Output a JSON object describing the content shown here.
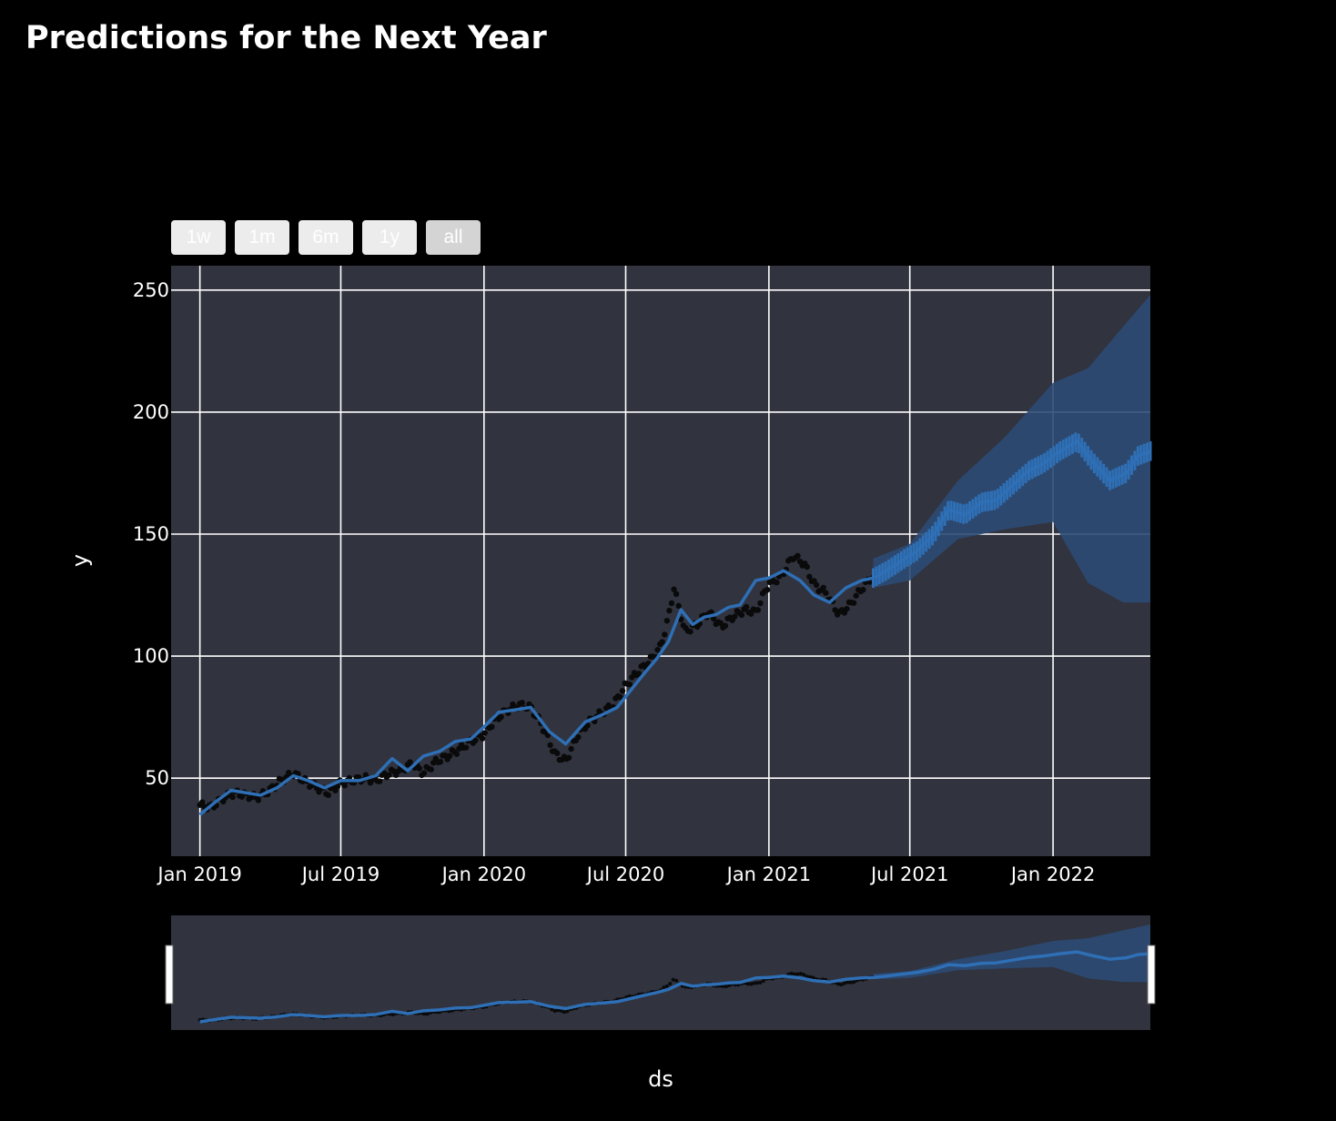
{
  "title": "Predictions for the Next Year",
  "range_selector": {
    "buttons": [
      {
        "label": "1w",
        "active": false
      },
      {
        "label": "1m",
        "active": false
      },
      {
        "label": "6m",
        "active": false
      },
      {
        "label": "1y",
        "active": false
      },
      {
        "label": "all",
        "active": true
      }
    ]
  },
  "colors": {
    "page_background": "#000000",
    "plot_background": "#31333f",
    "grid": "#ffffff",
    "forecast_line": "#2e6fb5",
    "forecast_band": "#2e4a73",
    "actual_points": "#0a0a0a",
    "text": "#ffffff"
  },
  "chart_data": {
    "type": "line",
    "title": "Predictions for the Next Year",
    "xlabel": "ds",
    "ylabel": "y",
    "x_type": "date",
    "xlim": [
      "2018-11-25",
      "2022-05-06"
    ],
    "ylim": [
      18,
      260
    ],
    "x_ticks": [
      "2019-01-01",
      "2019-07-01",
      "2020-01-01",
      "2020-07-01",
      "2021-01-01",
      "2021-07-01",
      "2022-01-01"
    ],
    "x_tick_labels": [
      "Jan 2019",
      "Jul 2019",
      "Jan 2020",
      "Jul 2020",
      "Jan 2021",
      "Jul 2021",
      "Jan 2022"
    ],
    "y_ticks": [
      50,
      100,
      150,
      200,
      250
    ],
    "grid": true,
    "legend": false,
    "range_slider": true,
    "series": [
      {
        "kind": "actual (markers)",
        "x": [
          "2019-01-01",
          "2019-01-15",
          "2019-02-01",
          "2019-02-15",
          "2019-03-01",
          "2019-03-15",
          "2019-04-01",
          "2019-04-15",
          "2019-05-01",
          "2019-05-15",
          "2019-06-01",
          "2019-06-15",
          "2019-07-01",
          "2019-07-15",
          "2019-08-01",
          "2019-08-15",
          "2019-09-01",
          "2019-09-15",
          "2019-10-01",
          "2019-10-15",
          "2019-11-01",
          "2019-11-15",
          "2019-12-01",
          "2019-12-15",
          "2020-01-01",
          "2020-01-15",
          "2020-02-01",
          "2020-02-15",
          "2020-03-01",
          "2020-03-15",
          "2020-04-01",
          "2020-04-15",
          "2020-05-01",
          "2020-05-15",
          "2020-06-01",
          "2020-06-15",
          "2020-07-01",
          "2020-07-15",
          "2020-08-01",
          "2020-08-15",
          "2020-08-25",
          "2020-09-01",
          "2020-09-15",
          "2020-10-01",
          "2020-10-15",
          "2020-11-01",
          "2020-11-15",
          "2020-12-01",
          "2020-12-15",
          "2021-01-01",
          "2021-01-15",
          "2021-02-01",
          "2021-02-15",
          "2021-03-01",
          "2021-03-15",
          "2021-04-01",
          "2021-04-15",
          "2021-05-01",
          "2021-05-15"
        ],
        "y": [
          39,
          38,
          42,
          44,
          43,
          42,
          45,
          49,
          52,
          49,
          46,
          44,
          48,
          49,
          50,
          49,
          52,
          53,
          56,
          52,
          57,
          59,
          62,
          65,
          68,
          74,
          78,
          80,
          79,
          72,
          60,
          57,
          68,
          73,
          77,
          80,
          88,
          93,
          98,
          104,
          116,
          128,
          110,
          113,
          118,
          112,
          116,
          119,
          118,
          130,
          132,
          141,
          138,
          129,
          126,
          117,
          121,
          128,
          133
        ]
      },
      {
        "kind": "forecast (yhat)",
        "x": [
          "2019-01-01",
          "2019-01-20",
          "2019-02-10",
          "2019-03-01",
          "2019-03-20",
          "2019-04-10",
          "2019-05-01",
          "2019-05-20",
          "2019-06-10",
          "2019-07-01",
          "2019-07-25",
          "2019-08-15",
          "2019-09-05",
          "2019-09-25",
          "2019-10-15",
          "2019-11-05",
          "2019-11-25",
          "2019-12-15",
          "2020-01-01",
          "2020-01-20",
          "2020-02-10",
          "2020-03-01",
          "2020-03-25",
          "2020-04-15",
          "2020-05-10",
          "2020-06-01",
          "2020-06-20",
          "2020-07-10",
          "2020-07-25",
          "2020-08-10",
          "2020-08-25",
          "2020-09-10",
          "2020-09-25",
          "2020-10-10",
          "2020-10-25",
          "2020-11-10",
          "2020-11-25",
          "2020-12-15",
          "2021-01-01",
          "2021-01-20",
          "2021-02-10",
          "2021-02-28",
          "2021-03-20",
          "2021-04-10",
          "2021-04-30",
          "2021-05-15",
          "2021-06-01",
          "2021-06-20",
          "2021-07-10",
          "2021-08-01",
          "2021-08-20",
          "2021-09-10",
          "2021-10-01",
          "2021-10-20",
          "2021-11-10",
          "2021-12-01",
          "2021-12-20",
          "2022-01-10",
          "2022-02-01",
          "2022-02-20",
          "2022-03-15",
          "2022-04-05",
          "2022-04-20",
          "2022-05-06"
        ],
        "y": [
          35,
          40,
          45,
          44,
          43,
          46,
          51,
          49,
          46,
          49,
          49,
          51,
          58,
          53,
          59,
          61,
          65,
          66,
          71,
          77,
          78,
          79,
          69,
          64,
          73,
          76,
          79,
          87,
          93,
          99,
          106,
          119,
          113,
          116,
          117,
          120,
          121,
          131,
          132,
          135,
          131,
          125,
          122,
          128,
          131,
          132,
          135,
          139,
          143,
          150,
          160,
          158,
          163,
          164,
          170,
          176,
          179,
          184,
          188,
          180,
          172,
          175,
          182,
          184
        ]
      },
      {
        "kind": "uncertainty band (yhat_lower / yhat_upper)",
        "x": [
          "2021-05-15",
          "2021-07-01",
          "2021-09-01",
          "2021-11-01",
          "2022-01-01",
          "2022-02-15",
          "2022-04-01",
          "2022-05-06"
        ],
        "lower": [
          128,
          131,
          148,
          152,
          155,
          130,
          122,
          122
        ],
        "upper": [
          140,
          146,
          172,
          190,
          212,
          218,
          235,
          248
        ]
      }
    ]
  }
}
